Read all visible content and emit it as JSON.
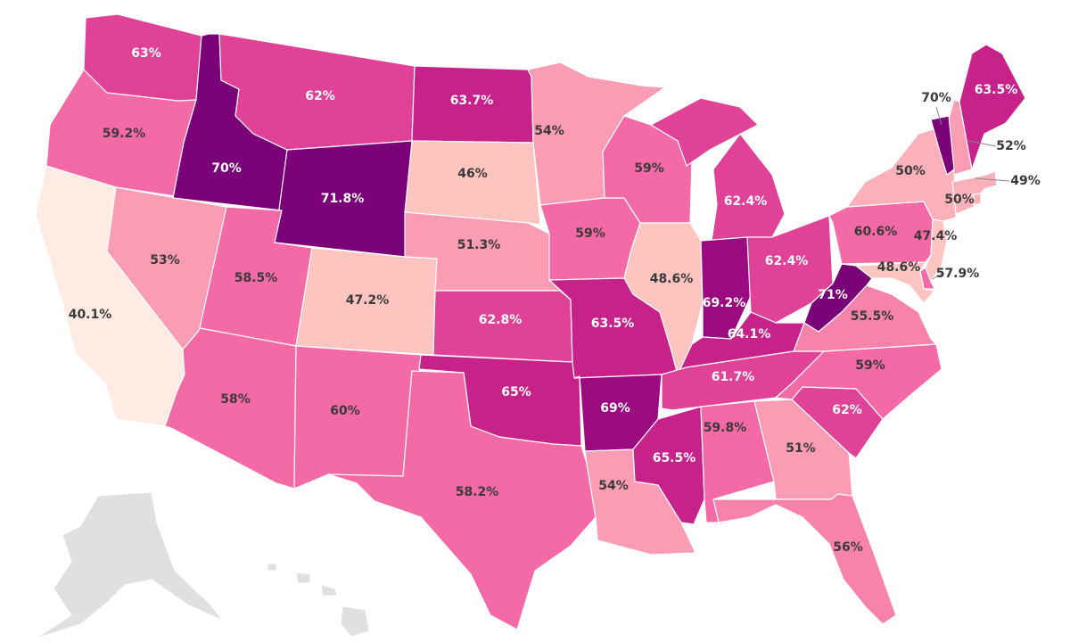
{
  "map": {
    "color_scale": [
      {
        "min": 0,
        "color": "#feece4"
      },
      {
        "min": 44,
        "color": "#fdc4c0"
      },
      {
        "min": 49,
        "color": "#fcb0ba"
      },
      {
        "min": 51,
        "color": "#fa9db4"
      },
      {
        "min": 55,
        "color": "#f783ad"
      },
      {
        "min": 57,
        "color": "#f36aa6"
      },
      {
        "min": 61,
        "color": "#df4297"
      },
      {
        "min": 63.2,
        "color": "#c72289"
      },
      {
        "min": 66,
        "color": "#9b0a7e"
      },
      {
        "min": 69.9,
        "color": "#7a0177"
      }
    ],
    "no_data_color": "#e0e0e0",
    "states": [
      {
        "id": "CA",
        "value": 40.1,
        "label": "40.1%"
      },
      {
        "id": "OR",
        "value": 59.2,
        "label": "59.2%"
      },
      {
        "id": "WA",
        "value": 63,
        "label": "63%"
      },
      {
        "id": "NV",
        "value": 53,
        "label": "53%"
      },
      {
        "id": "ID",
        "value": 70,
        "label": "70%"
      },
      {
        "id": "MT",
        "value": 62,
        "label": "62%"
      },
      {
        "id": "WY",
        "value": 71.8,
        "label": "71.8%"
      },
      {
        "id": "UT",
        "value": 58.5,
        "label": "58.5%"
      },
      {
        "id": "AZ",
        "value": 58,
        "label": "58%"
      },
      {
        "id": "CO",
        "value": 47.2,
        "label": "47.2%"
      },
      {
        "id": "NM",
        "value": 60,
        "label": "60%"
      },
      {
        "id": "ND",
        "value": 63.7,
        "label": "63.7%"
      },
      {
        "id": "SD",
        "value": 46,
        "label": "46%"
      },
      {
        "id": "NE",
        "value": 51.3,
        "label": "51.3%"
      },
      {
        "id": "KS",
        "value": 62.8,
        "label": "62.8%"
      },
      {
        "id": "OK",
        "value": 65,
        "label": "65%"
      },
      {
        "id": "TX",
        "value": 58.2,
        "label": "58.2%"
      },
      {
        "id": "MN",
        "value": 54,
        "label": "54%"
      },
      {
        "id": "IA",
        "value": 59,
        "label": "59%"
      },
      {
        "id": "MO",
        "value": 63.5,
        "label": "63.5%"
      },
      {
        "id": "AR",
        "value": 69,
        "label": "69%"
      },
      {
        "id": "LA",
        "value": 54,
        "label": "54%"
      },
      {
        "id": "WI",
        "value": 59,
        "label": "59%"
      },
      {
        "id": "IL",
        "value": 48.6,
        "label": "48.6%"
      },
      {
        "id": "MI",
        "value": 62.4,
        "label": "62.4%"
      },
      {
        "id": "IN",
        "value": 69.2,
        "label": "69.2%"
      },
      {
        "id": "OH",
        "value": 62.4,
        "label": "62.4%"
      },
      {
        "id": "KY",
        "value": 64.1,
        "label": "64.1%"
      },
      {
        "id": "TN",
        "value": 61.7,
        "label": "61.7%"
      },
      {
        "id": "MS",
        "value": 65.5,
        "label": "65.5%"
      },
      {
        "id": "AL",
        "value": 59.8,
        "label": "59.8%"
      },
      {
        "id": "GA",
        "value": 51,
        "label": "51%"
      },
      {
        "id": "FL",
        "value": 56,
        "label": "56%"
      },
      {
        "id": "SC",
        "value": 62,
        "label": "62%"
      },
      {
        "id": "NC",
        "value": 59,
        "label": "59%"
      },
      {
        "id": "VA",
        "value": 55.5,
        "label": "55.5%"
      },
      {
        "id": "WV",
        "value": 71,
        "label": "71%"
      },
      {
        "id": "PA",
        "value": 60.6,
        "label": "60.6%"
      },
      {
        "id": "NY",
        "value": 50,
        "label": "50%"
      },
      {
        "id": "NJ",
        "value": 47.4,
        "label": "47.4%"
      },
      {
        "id": "DE",
        "value": 57.9,
        "label": "57.9%"
      },
      {
        "id": "MD",
        "value": 48.6,
        "label": "48.6%"
      },
      {
        "id": "CT",
        "value": 50,
        "label": "50%"
      },
      {
        "id": "MA",
        "value": 49,
        "label": "49%"
      },
      {
        "id": "NH",
        "value": 52,
        "label": "52%"
      },
      {
        "id": "VT",
        "value": 70,
        "label": "70%"
      },
      {
        "id": "ME",
        "value": 63.5,
        "label": "63.5%"
      },
      {
        "id": "RI",
        "value": 49,
        "label": ""
      },
      {
        "id": "AK",
        "value": null,
        "label": ""
      },
      {
        "id": "HI",
        "value": null,
        "label": ""
      }
    ]
  }
}
